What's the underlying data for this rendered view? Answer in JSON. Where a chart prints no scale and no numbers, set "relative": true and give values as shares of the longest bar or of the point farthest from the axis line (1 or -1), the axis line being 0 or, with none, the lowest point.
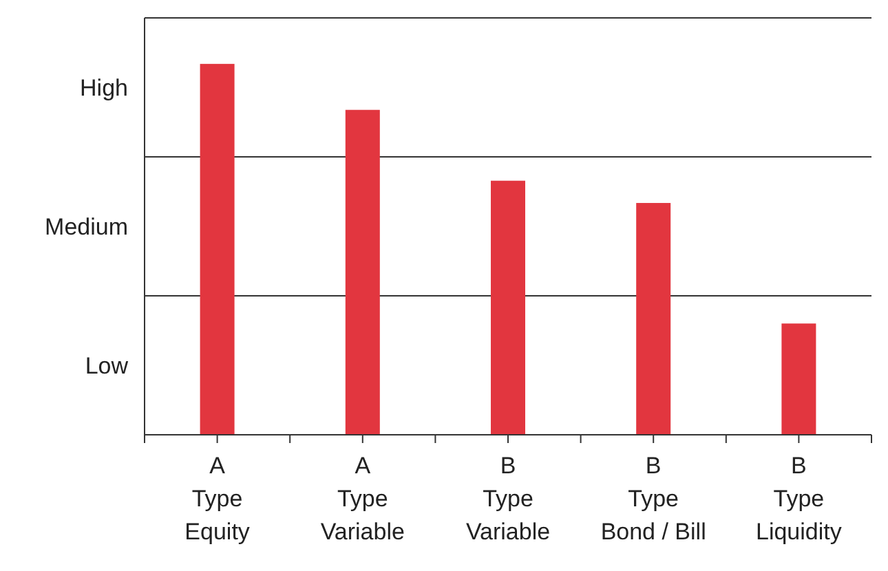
{
  "chart_data": {
    "type": "bar",
    "relative": true,
    "categories": [
      "A\nType\nEquity",
      "A\nType\nVariable",
      "B\nType\nVariable",
      "B\nType\nBond / Bill",
      "B\nType\nLiquidity"
    ],
    "values": [
      1,
      0.876,
      0.685,
      0.625,
      0.3
    ],
    "color": "#e2363f",
    "annotations": [
      "Low",
      "Medium",
      "High"
    ],
    "ref_lines": [
      {
        "axis": "y",
        "value": 0.375,
        "color": "#333333"
      },
      {
        "axis": "y",
        "value": 0.749,
        "color": "#333333"
      }
    ]
  }
}
